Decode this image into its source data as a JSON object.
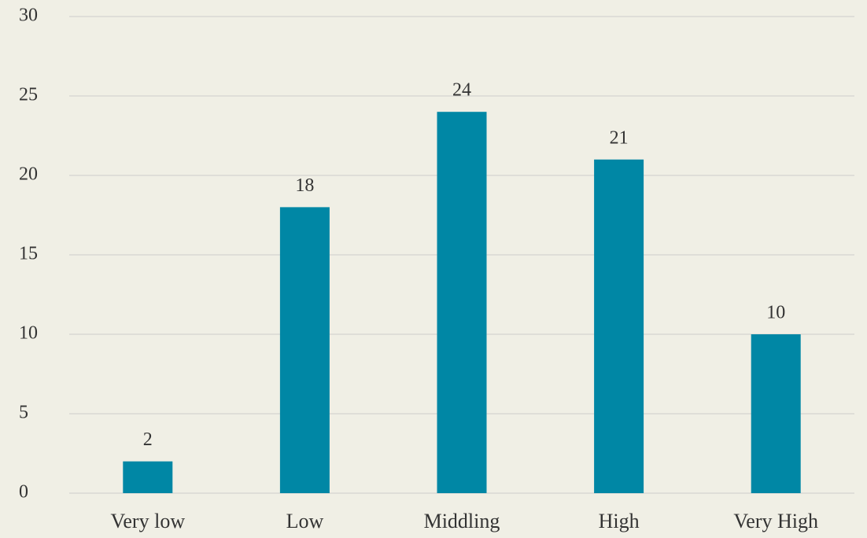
{
  "chart_data": {
    "type": "bar",
    "categories": [
      "Very low",
      "Low",
      "Middling",
      "High",
      "Very High"
    ],
    "values": [
      2,
      18,
      24,
      21,
      10
    ],
    "color": "#0087a5",
    "ylim": [
      0,
      30
    ],
    "yticks": [
      0,
      5,
      10,
      15,
      20,
      25,
      30
    ],
    "grid": true
  }
}
